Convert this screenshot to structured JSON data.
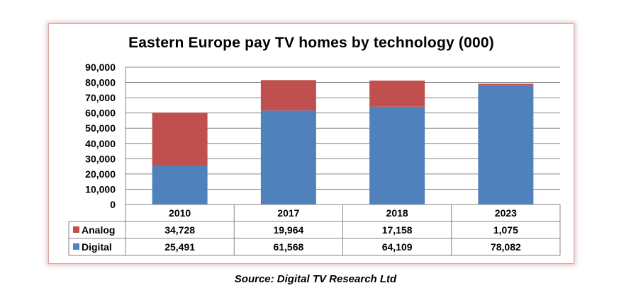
{
  "chart_data": {
    "type": "bar",
    "stacked": true,
    "title": "Eastern Europe pay TV homes by technology (000)",
    "categories": [
      "2010",
      "2017",
      "2018",
      "2023"
    ],
    "series": [
      {
        "name": "Digital",
        "color": "#4f81bd",
        "values": [
          25491,
          61568,
          64109,
          78082
        ],
        "labels": [
          "25,491",
          "61,568",
          "64,109",
          "78,082"
        ]
      },
      {
        "name": "Analog",
        "color": "#c0504d",
        "values": [
          34728,
          19964,
          17158,
          1075
        ],
        "labels": [
          "34,728",
          "19,964",
          "17,158",
          "1,075"
        ]
      }
    ],
    "ylim": [
      0,
      90000
    ],
    "yticks": [
      "0",
      "10,000",
      "20,000",
      "30,000",
      "40,000",
      "50,000",
      "60,000",
      "70,000",
      "80,000",
      "90,000"
    ],
    "grid": true,
    "data_table": true
  },
  "source": "Source: Digital TV Research Ltd"
}
